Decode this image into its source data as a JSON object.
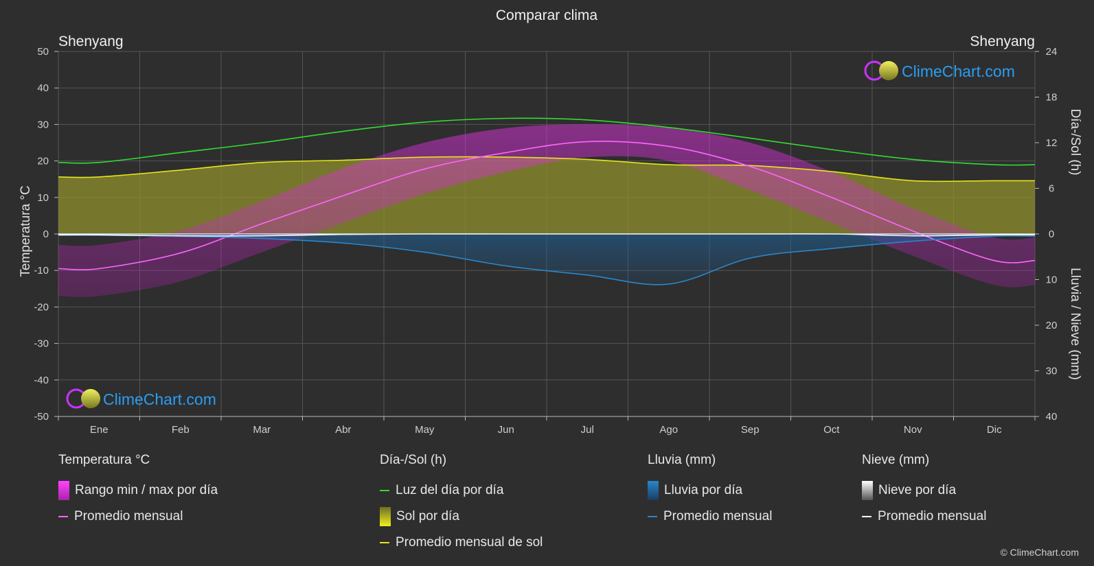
{
  "header": {
    "title": "Comparar clima",
    "city_left": "Shenyang",
    "city_right": "Shenyang",
    "copyright": "© ClimeChart.com"
  },
  "logo": {
    "text": "ClimeChart.com"
  },
  "colors": {
    "background": "#2e2e2e",
    "grid": "#555555",
    "temp_avg": "#ff66ff",
    "temp_range": "#dd22dd",
    "daylight": "#33dd33",
    "sun_avg": "#e6e61a",
    "sun_fill": "#8f8f2e",
    "rain": "#2a86cc",
    "snow": "#ffffff",
    "logo_text": "#2a9df4"
  },
  "chart_data": {
    "type": "line",
    "title": "Comparar clima",
    "categories": [
      "Ene",
      "Feb",
      "Mar",
      "Abr",
      "May",
      "Jun",
      "Jul",
      "Ago",
      "Sep",
      "Oct",
      "Nov",
      "Dic"
    ],
    "axes": {
      "left": {
        "label": "Temperatura °C",
        "range": [
          -50,
          50
        ],
        "ticks": [
          50,
          40,
          30,
          20,
          10,
          0,
          -10,
          -20,
          -30,
          -40,
          -50
        ]
      },
      "right_top": {
        "label": "Día-/Sol (h)",
        "range": [
          0,
          24
        ],
        "ticks": [
          24,
          18,
          12,
          6,
          0
        ]
      },
      "right_bottom": {
        "label": "Lluvia / Nieve (mm)",
        "range": [
          0,
          40
        ],
        "ticks": [
          0,
          10,
          20,
          30,
          40
        ]
      }
    },
    "grid": true,
    "series": [
      {
        "name": "Luz del día por día",
        "axis": "hours",
        "values": [
          9.4,
          10.7,
          12.0,
          13.5,
          14.7,
          15.2,
          15.0,
          14.0,
          12.6,
          11.1,
          9.8,
          9.1
        ]
      },
      {
        "name": "Promedio mensual de sol",
        "axis": "hours",
        "values": [
          7.5,
          8.4,
          9.4,
          9.7,
          10.1,
          10.1,
          9.8,
          9.1,
          9.0,
          8.2,
          7.0,
          7.0
        ]
      },
      {
        "name": "Promedio mensual",
        "group": "Temperatura °C",
        "axis": "temperature",
        "values": [
          -9.5,
          -5.2,
          2.8,
          10.5,
          17.8,
          22.3,
          25.3,
          24.0,
          18.5,
          10.0,
          0.8,
          -7.3
        ]
      },
      {
        "name": "Promedio mensual",
        "group": "Lluvia (mm)",
        "axis": "precip",
        "values": [
          0.3,
          0.5,
          1.0,
          2.0,
          4.0,
          7.0,
          9.0,
          11.0,
          5.3,
          3.2,
          1.6,
          0.5
        ]
      },
      {
        "name": "Promedio mensual",
        "group": "Nieve (mm)",
        "axis": "precip",
        "values": [
          0.2,
          0.4,
          0.4,
          0.1,
          0,
          0,
          0,
          0,
          0,
          0,
          0.4,
          0.2
        ]
      }
    ],
    "bands": {
      "temp_min": [
        -17,
        -13,
        -5,
        3,
        11,
        17,
        21,
        20,
        12,
        3,
        -6,
        -14
      ],
      "temp_max": [
        -3,
        1,
        9,
        18,
        25,
        29,
        30,
        29,
        25,
        17,
        7,
        -1
      ]
    }
  },
  "legend": {
    "groups": [
      {
        "title": "Temperatura °C",
        "items": [
          {
            "label": "Rango min / max por día",
            "kind": "box",
            "color": "#dd22dd"
          },
          {
            "label": "Promedio mensual",
            "kind": "line",
            "color": "#ff66ff"
          }
        ]
      },
      {
        "title": "Día-/Sol (h)",
        "items": [
          {
            "label": "Luz del día por día",
            "kind": "line",
            "color": "#33dd33"
          },
          {
            "label": "Sol por día",
            "kind": "box",
            "color": "#d8d830"
          },
          {
            "label": "Promedio mensual de sol",
            "kind": "line",
            "color": "#e6e61a"
          }
        ]
      },
      {
        "title": "Lluvia (mm)",
        "items": [
          {
            "label": "Lluvia por día",
            "kind": "box",
            "color": "#2a86cc"
          },
          {
            "label": "Promedio mensual",
            "kind": "line",
            "color": "#2a86cc"
          }
        ]
      },
      {
        "title": "Nieve (mm)",
        "items": [
          {
            "label": "Nieve por día",
            "kind": "box",
            "color": "#dddddd"
          },
          {
            "label": "Promedio mensual",
            "kind": "line",
            "color": "#ffffff"
          }
        ]
      }
    ]
  }
}
